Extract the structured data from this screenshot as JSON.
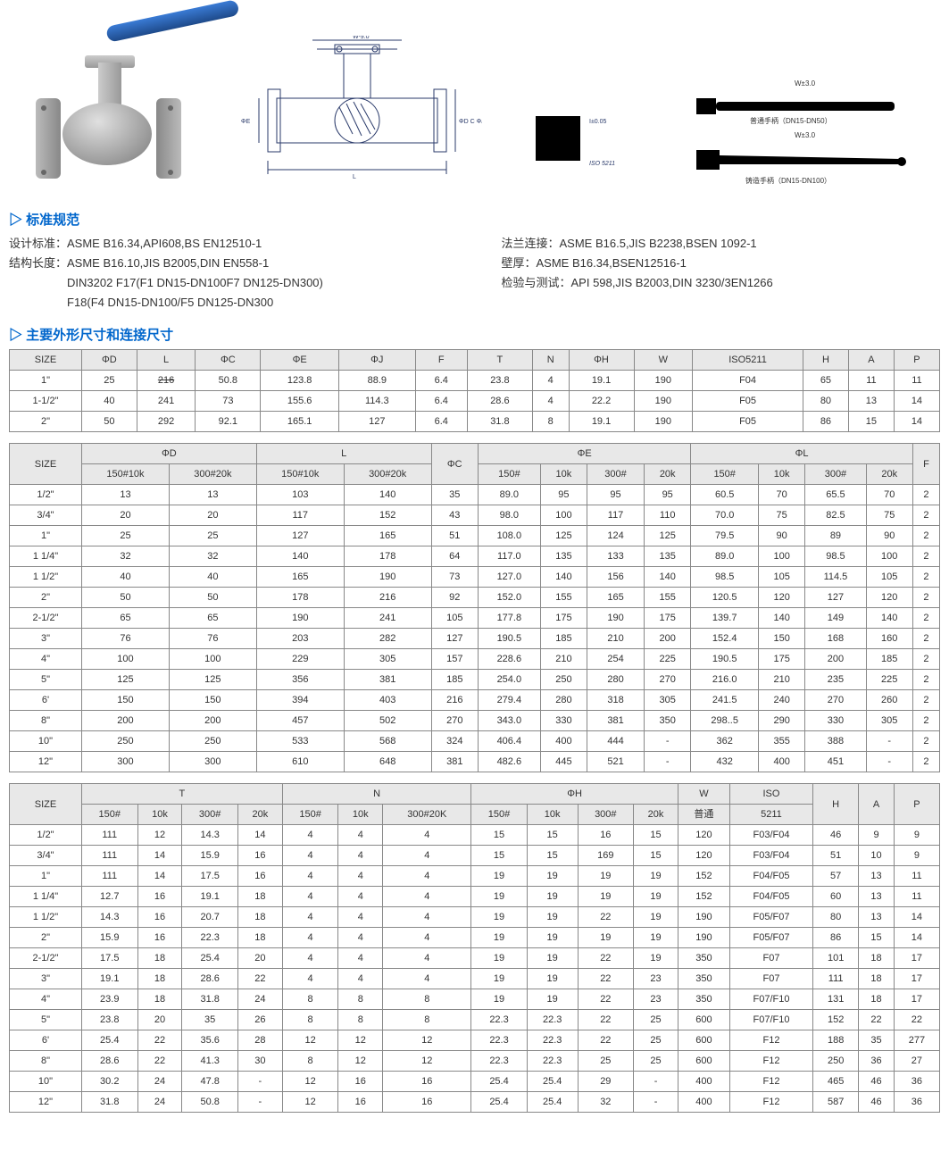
{
  "sections": {
    "standards_title": "标准规范",
    "dimensions_title": "主要外形尺寸和连接尺寸"
  },
  "standards": {
    "left": [
      {
        "label": "设计标准：",
        "value": "ASME B16.34,API608,BS EN12510-1"
      },
      {
        "label": "结构长度：",
        "value": "ASME B16.10,JIS B2005,DIN EN558-1"
      },
      {
        "label": "",
        "value": "DIN3202 F17(F1 DN15-DN100F7 DN125-DN300)"
      },
      {
        "label": "",
        "value": "F18(F4 DN15-DN100/F5 DN125-DN300"
      }
    ],
    "right": [
      {
        "label": "法兰连接：",
        "value": "ASME B16.5,JIS B2238,BSEN 1092-1"
      },
      {
        "label": "壁厚：",
        "value": "ASME B16.34,BSEN12516-1"
      },
      {
        "label": "检验与测试：",
        "value": "API 598,JIS B2003,DIN 3230/3EN1266"
      }
    ]
  },
  "table1": {
    "headers": [
      "SIZE",
      "ΦD",
      "L",
      "ΦC",
      "ΦE",
      "ΦJ",
      "F",
      "T",
      "N",
      "ΦH",
      "W",
      "ISO5211",
      "H",
      "A",
      "P"
    ],
    "rows": [
      [
        "1\"",
        "25",
        "216",
        "50.8",
        "123.8",
        "88.9",
        "6.4",
        "23.8",
        "4",
        "19.1",
        "190",
        "F04",
        "65",
        "11",
        "11"
      ],
      [
        "1-1/2\"",
        "40",
        "241",
        "73",
        "155.6",
        "114.3",
        "6.4",
        "28.6",
        "4",
        "22.2",
        "190",
        "F05",
        "80",
        "13",
        "14"
      ],
      [
        "2\"",
        "50",
        "292",
        "92.1",
        "165.1",
        "127",
        "6.4",
        "31.8",
        "8",
        "19.1",
        "190",
        "F05",
        "86",
        "15",
        "14"
      ]
    ],
    "strike_cell": {
      "row": 0,
      "col": 2
    }
  },
  "table2": {
    "header_top": [
      "SIZE",
      "ΦD",
      "L",
      "ΦC",
      "ΦE",
      "ΦL",
      "F"
    ],
    "header_sub": [
      "150#10k",
      "300#20k",
      "150#10k",
      "300#20k",
      "",
      "150#",
      "10k",
      "300#",
      "20k",
      "150#",
      "10k",
      "300#",
      "20k",
      ""
    ],
    "rows": [
      [
        "1/2\"",
        "13",
        "13",
        "103",
        "140",
        "35",
        "89.0",
        "95",
        "95",
        "95",
        "60.5",
        "70",
        "65.5",
        "70",
        "2"
      ],
      [
        "3/4\"",
        "20",
        "20",
        "117",
        "152",
        "43",
        "98.0",
        "100",
        "117",
        "110",
        "70.0",
        "75",
        "82.5",
        "75",
        "2"
      ],
      [
        "1\"",
        "25",
        "25",
        "127",
        "165",
        "51",
        "108.0",
        "125",
        "124",
        "125",
        "79.5",
        "90",
        "89",
        "90",
        "2"
      ],
      [
        "1 1/4\"",
        "32",
        "32",
        "140",
        "178",
        "64",
        "117.0",
        "135",
        "133",
        "135",
        "89.0",
        "100",
        "98.5",
        "100",
        "2"
      ],
      [
        "1 1/2\"",
        "40",
        "40",
        "165",
        "190",
        "73",
        "127.0",
        "140",
        "156",
        "140",
        "98.5",
        "105",
        "114.5",
        "105",
        "2"
      ],
      [
        "2\"",
        "50",
        "50",
        "178",
        "216",
        "92",
        "152.0",
        "155",
        "165",
        "155",
        "120.5",
        "120",
        "127",
        "120",
        "2"
      ],
      [
        "2-1/2\"",
        "65",
        "65",
        "190",
        "241",
        "105",
        "177.8",
        "175",
        "190",
        "175",
        "139.7",
        "140",
        "149",
        "140",
        "2"
      ],
      [
        "3\"",
        "76",
        "76",
        "203",
        "282",
        "127",
        "190.5",
        "185",
        "210",
        "200",
        "152.4",
        "150",
        "168",
        "160",
        "2"
      ],
      [
        "4\"",
        "100",
        "100",
        "229",
        "305",
        "157",
        "228.6",
        "210",
        "254",
        "225",
        "190.5",
        "175",
        "200",
        "185",
        "2"
      ],
      [
        "5\"",
        "125",
        "125",
        "356",
        "381",
        "185",
        "254.0",
        "250",
        "280",
        "270",
        "216.0",
        "210",
        "235",
        "225",
        "2"
      ],
      [
        "6'",
        "150",
        "150",
        "394",
        "403",
        "216",
        "279.4",
        "280",
        "318",
        "305",
        "241.5",
        "240",
        "270",
        "260",
        "2"
      ],
      [
        "8\"",
        "200",
        "200",
        "457",
        "502",
        "270",
        "343.0",
        "330",
        "381",
        "350",
        "298..5",
        "290",
        "330",
        "305",
        "2"
      ],
      [
        "10\"",
        "250",
        "250",
        "533",
        "568",
        "324",
        "406.4",
        "400",
        "444",
        "-",
        "362",
        "355",
        "388",
        "-",
        "2"
      ],
      [
        "12\"",
        "300",
        "300",
        "610",
        "648",
        "381",
        "482.6",
        "445",
        "521",
        "-",
        "432",
        "400",
        "451",
        "-",
        "2"
      ]
    ]
  },
  "table3": {
    "header_top": [
      "SIZE",
      "T",
      "N",
      "ΦH",
      "W",
      "ISO",
      "H",
      "A",
      "P"
    ],
    "header_sub": [
      "150#",
      "10k",
      "300#",
      "20k",
      "150#",
      "10k",
      "300#20K",
      "150#",
      "10k",
      "300#",
      "20k",
      "普通",
      "5211",
      "",
      "",
      ""
    ],
    "rows": [
      [
        "1/2\"",
        "111",
        "12",
        "14.3",
        "14",
        "4",
        "4",
        "4",
        "15",
        "15",
        "16",
        "15",
        "120",
        "F03/F04",
        "46",
        "9",
        "9"
      ],
      [
        "3/4\"",
        "111",
        "14",
        "15.9",
        "16",
        "4",
        "4",
        "4",
        "15",
        "15",
        "169",
        "15",
        "120",
        "F03/F04",
        "51",
        "10",
        "9"
      ],
      [
        "1\"",
        "111",
        "14",
        "17.5",
        "16",
        "4",
        "4",
        "4",
        "19",
        "19",
        "19",
        "19",
        "152",
        "F04/F05",
        "57",
        "13",
        "11"
      ],
      [
        "1 1/4\"",
        "12.7",
        "16",
        "19.1",
        "18",
        "4",
        "4",
        "4",
        "19",
        "19",
        "19",
        "19",
        "152",
        "F04/F05",
        "60",
        "13",
        "11"
      ],
      [
        "1 1/2\"",
        "14.3",
        "16",
        "20.7",
        "18",
        "4",
        "4",
        "4",
        "19",
        "19",
        "22",
        "19",
        "190",
        "F05/F07",
        "80",
        "13",
        "14"
      ],
      [
        "2\"",
        "15.9",
        "16",
        "22.3",
        "18",
        "4",
        "4",
        "4",
        "19",
        "19",
        "19",
        "19",
        "190",
        "F05/F07",
        "86",
        "15",
        "14"
      ],
      [
        "2-1/2\"",
        "17.5",
        "18",
        "25.4",
        "20",
        "4",
        "4",
        "4",
        "19",
        "19",
        "22",
        "19",
        "350",
        "F07",
        "101",
        "18",
        "17"
      ],
      [
        "3\"",
        "19.1",
        "18",
        "28.6",
        "22",
        "4",
        "4",
        "4",
        "19",
        "19",
        "22",
        "23",
        "350",
        "F07",
        "111",
        "18",
        "17"
      ],
      [
        "4\"",
        "23.9",
        "18",
        "31.8",
        "24",
        "8",
        "8",
        "8",
        "19",
        "19",
        "22",
        "23",
        "350",
        "F07/F10",
        "131",
        "18",
        "17"
      ],
      [
        "5\"",
        "23.8",
        "20",
        "35",
        "26",
        "8",
        "8",
        "8",
        "22.3",
        "22.3",
        "22",
        "25",
        "600",
        "F07/F10",
        "152",
        "22",
        "22"
      ],
      [
        "6'",
        "25.4",
        "22",
        "35.6",
        "28",
        "12",
        "12",
        "12",
        "22.3",
        "22.3",
        "22",
        "25",
        "600",
        "F12",
        "188",
        "35",
        "277"
      ],
      [
        "8\"",
        "28.6",
        "22",
        "41.3",
        "30",
        "8",
        "12",
        "12",
        "22.3",
        "22.3",
        "25",
        "25",
        "600",
        "F12",
        "250",
        "36",
        "27"
      ],
      [
        "10\"",
        "30.2",
        "24",
        "47.8",
        "-",
        "12",
        "16",
        "16",
        "25.4",
        "25.4",
        "29",
        "-",
        "400",
        "F12",
        "465",
        "46",
        "36"
      ],
      [
        "12\"",
        "31.8",
        "24",
        "50.8",
        "-",
        "12",
        "16",
        "16",
        "25.4",
        "25.4",
        "32",
        "-",
        "400",
        "F12",
        "587",
        "46",
        "36"
      ]
    ]
  },
  "drawing_labels": {
    "iso5211": "ISO 5211",
    "tol": "I±0.05",
    "phi": "ΦD C ΦJ",
    "w30_1": "W±3.0",
    "w30_2": "W±3.0",
    "handle1": "普通手柄（DN15-DN50）",
    "handle2": "铸造手柄（DN15-DN100）"
  }
}
